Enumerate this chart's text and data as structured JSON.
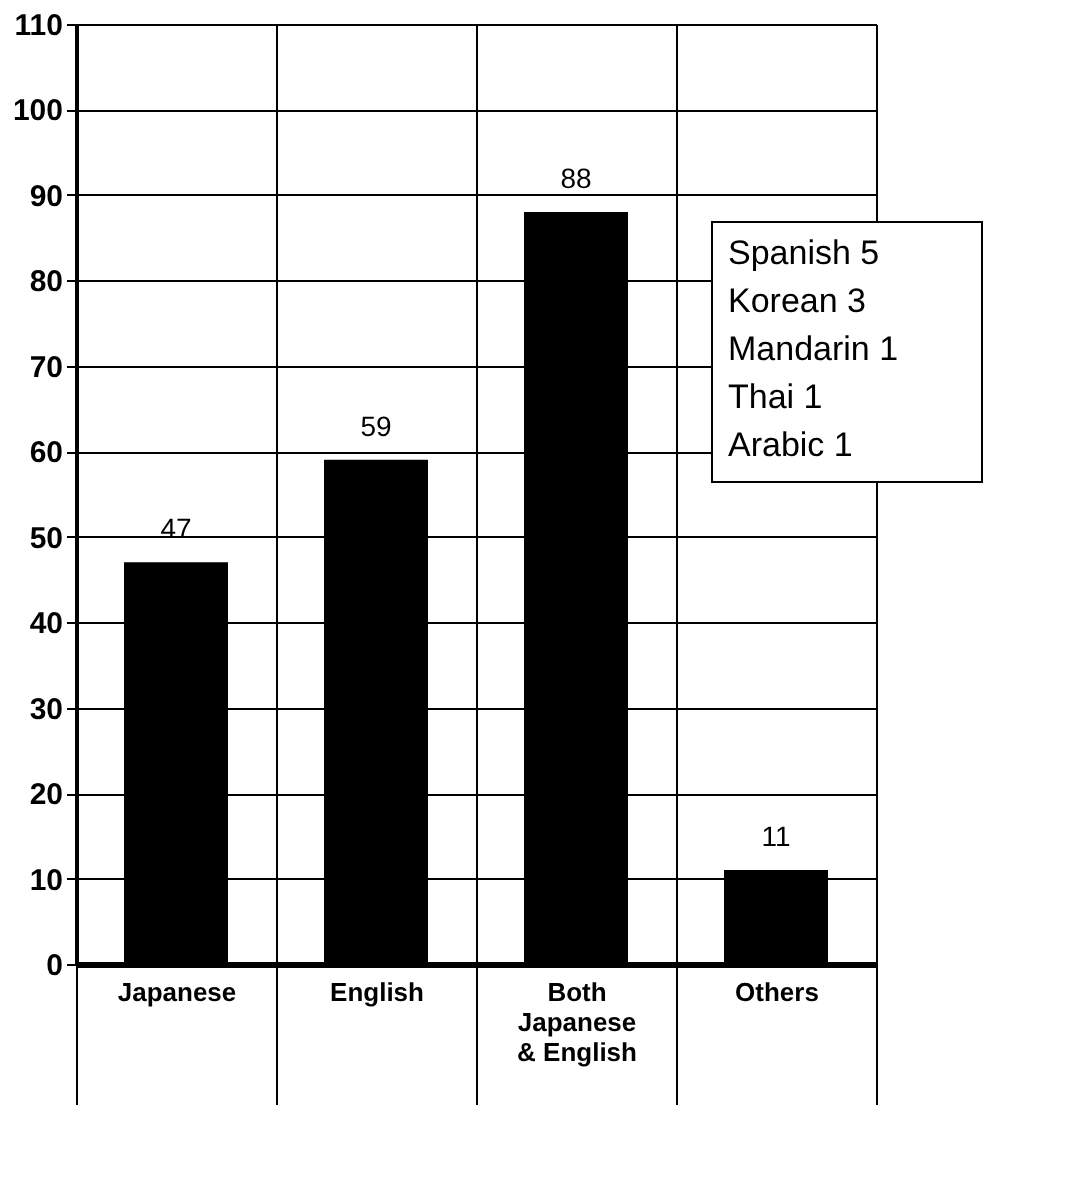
{
  "chart_data": {
    "type": "bar",
    "categories": [
      "Japanese",
      "English",
      "Both\nJapanese\n& English",
      "Others"
    ],
    "values": [
      47,
      59,
      88,
      11
    ],
    "color": "#000000",
    "ylim": [
      0,
      110
    ],
    "yticks": [
      0,
      10,
      20,
      30,
      40,
      50,
      60,
      70,
      80,
      90,
      100,
      110
    ],
    "grid": true,
    "data_labels": true,
    "annotations": [
      "Spanish 5",
      "Korean 3",
      "Mandarin 1",
      "Thai 1",
      "Arabic 1"
    ]
  }
}
